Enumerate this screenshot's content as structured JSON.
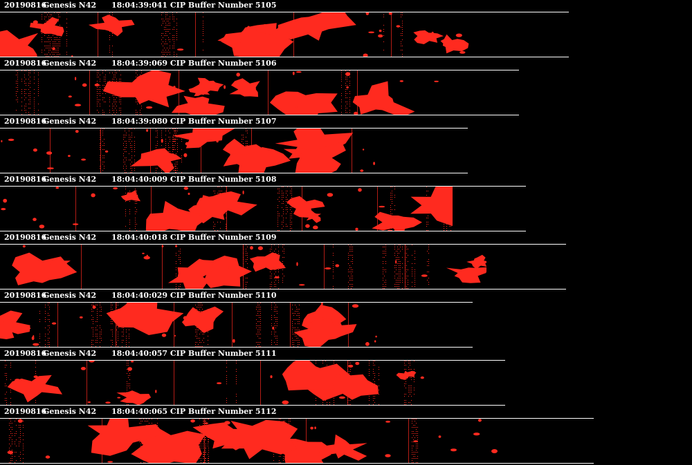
{
  "strips": [
    {
      "date": "20190816",
      "probe": "Genesis N42",
      "time": "18:04:39:041",
      "buffer": "CIP Buffer Number 5105",
      "color": "#ff2a1f",
      "extent": 822
    },
    {
      "date": "20190816",
      "probe": "Genesis N42",
      "time": "18:04:39:069",
      "buffer": "CIP Buffer Number 5106",
      "color": "#ff2a1f",
      "extent": 750
    },
    {
      "date": "20190816",
      "probe": "Genesis N42",
      "time": "18:04:39:080",
      "buffer": "CIP Buffer Number 5107",
      "color": "#ff2a1f",
      "extent": 676
    },
    {
      "date": "20190816",
      "probe": "Genesis N42",
      "time": "18:04:40:009",
      "buffer": "CIP Buffer Number 5108",
      "color": "#ff2a1f",
      "extent": 760
    },
    {
      "date": "20190816",
      "probe": "Genesis N42",
      "time": "18:04:40:018",
      "buffer": "CIP Buffer Number 5109",
      "color": "#ff2a1f",
      "extent": 818
    },
    {
      "date": "20190816",
      "probe": "Genesis N42",
      "time": "18:04:40:029",
      "buffer": "CIP Buffer Number 5110",
      "color": "#ff2a1f",
      "extent": 683
    },
    {
      "date": "20190816",
      "probe": "Genesis N42",
      "time": "18:04:40:057",
      "buffer": "CIP Buffer Number 5111",
      "color": "#ff2a1f",
      "extent": 730
    },
    {
      "date": "20190816",
      "probe": "Genesis N42",
      "time": "18:04:40:065",
      "buffer": "CIP Buffer Number 5112",
      "color": "#ff2a1f",
      "extent": 858
    }
  ]
}
